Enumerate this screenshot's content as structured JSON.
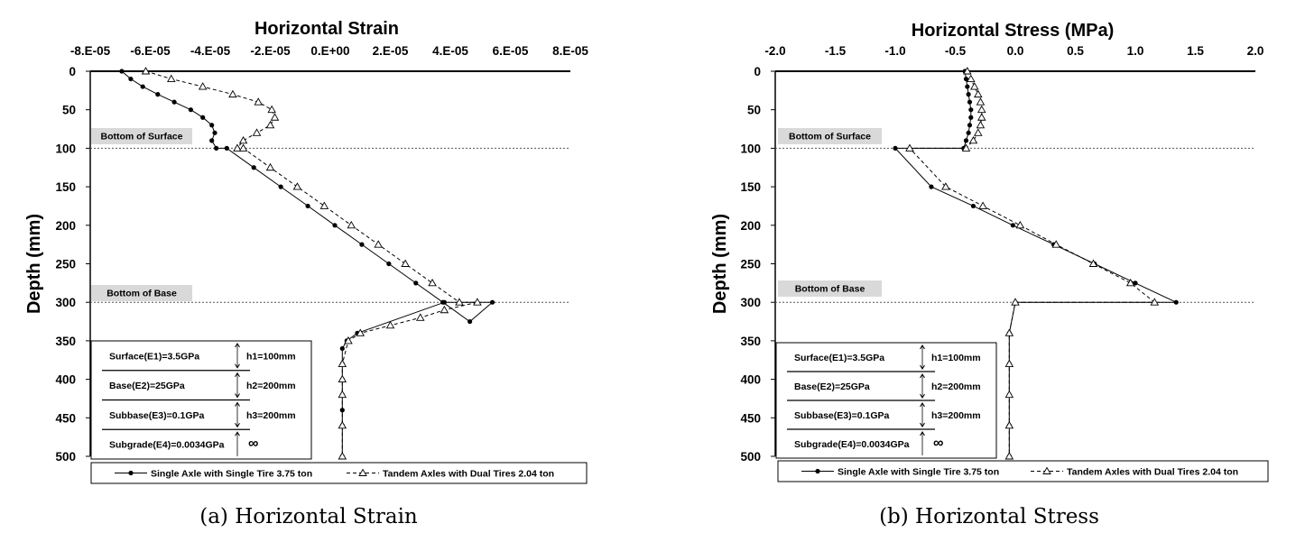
{
  "chart_data": [
    {
      "type": "line",
      "title": "Horizontal Strain",
      "ylabel": "Depth (mm)",
      "caption": "(a) Horizontal Strain",
      "xlim": [
        -8e-05,
        8e-05
      ],
      "ylim": [
        0,
        500
      ],
      "y_inverted": true,
      "x_position": "top",
      "x_ticks": [
        -8e-05,
        -6e-05,
        -4e-05,
        -2e-05,
        0,
        2e-05,
        4e-05,
        6e-05,
        8e-05
      ],
      "x_tick_labels": [
        "-8.E-05",
        "-6.E-05",
        "-4.E-05",
        "-2.E-05",
        "0.E+00",
        "2.E-05",
        "4.E-05",
        "6.E-05",
        "8.E-05"
      ],
      "y_ticks": [
        0,
        50,
        100,
        150,
        200,
        250,
        300,
        350,
        400,
        450,
        500
      ],
      "y_tick_labels": [
        "0",
        "50",
        "100",
        "150",
        "200",
        "250",
        "300",
        "350",
        "400",
        "450",
        "500"
      ],
      "annotations": [
        "Bottom of Surface",
        "Bottom of Base"
      ],
      "layer_table": [
        {
          "layer": "Surface(E1)=3.5GPa",
          "thickness": "h1=100mm"
        },
        {
          "layer": "Base(E2)=25GPa",
          "thickness": "h2=200mm"
        },
        {
          "layer": "Subbase(E3)=0.1GPa",
          "thickness": "h3=200mm"
        },
        {
          "layer": "Subgrade(E4)=0.0034GPa",
          "thickness": "∞"
        }
      ],
      "series": [
        {
          "name": "Single Axle with Single Tire 3.75 ton",
          "marker": "dot",
          "x": [
            -6.95e-05,
            -6.65e-05,
            -6.25e-05,
            -5.75e-05,
            -5.2e-05,
            -4.65e-05,
            -4.25e-05,
            -3.95e-05,
            -3.85e-05,
            -3.95e-05,
            -3.8e-05,
            -3.45e-05,
            -2.55e-05,
            -1.65e-05,
            -7.5e-06,
            1.5e-06,
            1.05e-05,
            1.95e-05,
            2.85e-05,
            3.75e-05,
            4.65e-05,
            5.4e-05,
            3.8e-05,
            9e-06,
            5.5e-06,
            4e-06,
            4e-06,
            4e-06,
            4e-06,
            4e-06,
            4e-06,
            4e-06
          ],
          "y": [
            0,
            10,
            20,
            30,
            40,
            50,
            60,
            70,
            80,
            90,
            100,
            100,
            125,
            150,
            175,
            200,
            225,
            250,
            275,
            300,
            325,
            300,
            300,
            340,
            350,
            360,
            380,
            400,
            420,
            440,
            460,
            500
          ]
        },
        {
          "name": "Tandem Axles with Dual Tires 2.04 ton",
          "marker": "triangle",
          "x": [
            -6.15e-05,
            -5.3e-05,
            -4.25e-05,
            -3.25e-05,
            -2.4e-05,
            -1.95e-05,
            -1.85e-05,
            -2e-05,
            -2.45e-05,
            -2.9e-05,
            -3.1e-05,
            -2.9e-05,
            -2e-05,
            -1.1e-05,
            -2e-06,
            7e-06,
            1.6e-05,
            2.5e-05,
            3.4e-05,
            4.3e-05,
            4.9e-05,
            3.8e-05,
            3e-05,
            2e-05,
            1e-05,
            6e-06,
            4e-06,
            4e-06,
            4e-06,
            4e-06,
            4e-06
          ],
          "y": [
            0,
            10,
            20,
            30,
            40,
            50,
            60,
            70,
            80,
            90,
            100,
            100,
            125,
            150,
            175,
            200,
            225,
            250,
            275,
            300,
            300,
            310,
            320,
            330,
            340,
            350,
            380,
            400,
            420,
            460,
            500
          ]
        }
      ]
    },
    {
      "type": "line",
      "title": "Horizontal Stress (MPa)",
      "ylabel": "Depth (mm)",
      "caption": "(b) Horizontal Stress",
      "xlim": [
        -2.0,
        2.0
      ],
      "ylim": [
        0,
        500
      ],
      "y_inverted": true,
      "x_position": "top",
      "x_ticks": [
        -2.0,
        -1.5,
        -1.0,
        -0.5,
        0.0,
        0.5,
        1.0,
        1.5,
        2.0
      ],
      "x_tick_labels": [
        "-2.0",
        "-1.5",
        "-1.0",
        "-0.5",
        "0.0",
        "0.5",
        "1.0",
        "1.5",
        "2.0"
      ],
      "y_ticks": [
        0,
        50,
        100,
        150,
        200,
        250,
        300,
        350,
        400,
        450,
        500
      ],
      "y_tick_labels": [
        "0",
        "50",
        "100",
        "150",
        "200",
        "250",
        "300",
        "350",
        "400",
        "450",
        "500"
      ],
      "annotations": [
        "Bottom of Surface",
        "Bottom of Base"
      ],
      "layer_table": [
        {
          "layer": "Surface(E1)=3.5GPa",
          "thickness": "h1=100mm"
        },
        {
          "layer": "Base(E2)=25GPa",
          "thickness": "h2=200mm"
        },
        {
          "layer": "Subbase(E3)=0.1GPa",
          "thickness": "h3=200mm"
        },
        {
          "layer": "Subgrade(E4)=0.0034GPa",
          "thickness": "∞"
        }
      ],
      "series": [
        {
          "name": "Single Axle with Single Tire 3.75 ton",
          "marker": "dot",
          "x": [
            -0.42,
            -0.41,
            -0.4,
            -0.39,
            -0.38,
            -0.37,
            -0.37,
            -0.38,
            -0.39,
            -0.41,
            -0.43,
            -1.0,
            -0.7,
            -0.35,
            -0.02,
            0.32,
            0.66,
            1.0,
            1.34,
            0.0,
            -0.05,
            -0.05,
            -0.05,
            -0.05,
            -0.05
          ],
          "y": [
            0,
            10,
            20,
            30,
            40,
            50,
            60,
            70,
            80,
            90,
            100,
            100,
            150,
            175,
            200,
            225,
            250,
            275,
            300,
            300,
            340,
            380,
            420,
            460,
            500
          ]
        },
        {
          "name": "Tandem Axles with Dual Tires 2.04 ton",
          "marker": "triangle",
          "x": [
            -0.4,
            -0.37,
            -0.34,
            -0.31,
            -0.29,
            -0.28,
            -0.28,
            -0.29,
            -0.31,
            -0.35,
            -0.41,
            -0.88,
            -0.58,
            -0.27,
            0.04,
            0.34,
            0.65,
            0.96,
            1.16,
            0.0,
            -0.05,
            -0.05,
            -0.05,
            -0.05,
            -0.05
          ],
          "y": [
            0,
            10,
            20,
            30,
            40,
            50,
            60,
            70,
            80,
            90,
            100,
            100,
            150,
            175,
            200,
            225,
            250,
            275,
            300,
            300,
            340,
            380,
            420,
            460,
            500
          ]
        }
      ]
    }
  ]
}
